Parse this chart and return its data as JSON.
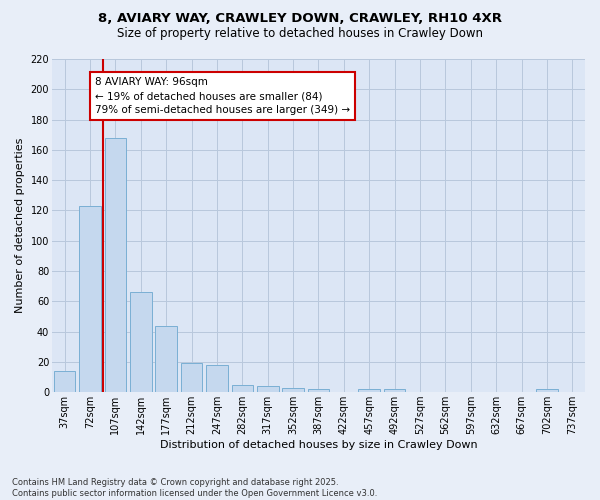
{
  "title1": "8, AVIARY WAY, CRAWLEY DOWN, CRAWLEY, RH10 4XR",
  "title2": "Size of property relative to detached houses in Crawley Down",
  "xlabel": "Distribution of detached houses by size in Crawley Down",
  "ylabel": "Number of detached properties",
  "categories": [
    "37sqm",
    "72sqm",
    "107sqm",
    "142sqm",
    "177sqm",
    "212sqm",
    "247sqm",
    "282sqm",
    "317sqm",
    "352sqm",
    "387sqm",
    "422sqm",
    "457sqm",
    "492sqm",
    "527sqm",
    "562sqm",
    "597sqm",
    "632sqm",
    "667sqm",
    "702sqm",
    "737sqm"
  ],
  "values": [
    14,
    123,
    168,
    66,
    44,
    19,
    18,
    5,
    4,
    3,
    2,
    0,
    2,
    2,
    0,
    0,
    0,
    0,
    0,
    2,
    0
  ],
  "bar_color": "#c5d8ee",
  "bar_edge_color": "#7aafd4",
  "bar_width": 0.85,
  "ylim": [
    0,
    220
  ],
  "yticks": [
    0,
    20,
    40,
    60,
    80,
    100,
    120,
    140,
    160,
    180,
    200,
    220
  ],
  "vline_x": 1.5,
  "vline_color": "#cc0000",
  "annotation_text": "8 AVIARY WAY: 96sqm\n← 19% of detached houses are smaller (84)\n79% of semi-detached houses are larger (349) →",
  "annotation_box_color": "#ffffff",
  "annotation_box_edge": "#cc0000",
  "footer": "Contains HM Land Registry data © Crown copyright and database right 2025.\nContains public sector information licensed under the Open Government Licence v3.0.",
  "bg_color": "#e8eef8",
  "plot_bg_color": "#dce6f5",
  "grid_color": "#b8c8dc",
  "title1_fontsize": 9.5,
  "title2_fontsize": 8.5,
  "ylabel_fontsize": 8,
  "xlabel_fontsize": 8,
  "tick_fontsize": 7,
  "footer_fontsize": 6,
  "ann_fontsize": 7.5
}
